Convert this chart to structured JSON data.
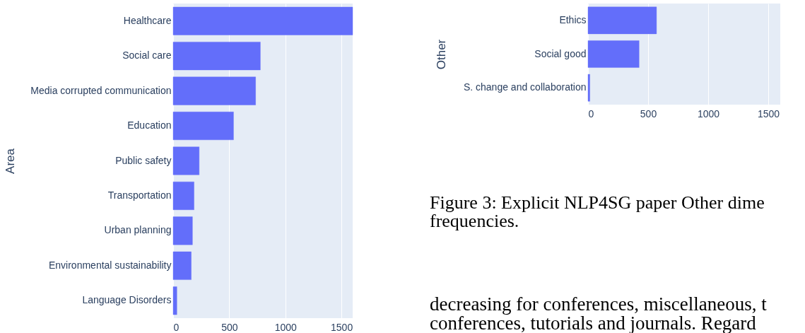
{
  "chart_data": [
    {
      "type": "bar",
      "orientation": "horizontal",
      "ylabel": "Area",
      "categories": [
        "Healthcare",
        "Social care",
        "Media corrupted communication",
        "Education",
        "Public safety",
        "Transportation",
        "Urban planning",
        "Environmental sustainability",
        "Language Disorders"
      ],
      "values": [
        1600,
        777,
        735,
        538,
        232,
        186,
        172,
        161,
        33
      ],
      "color": "#636efa",
      "xlim": [
        0,
        1600
      ],
      "xticks": [
        0,
        500,
        1000,
        1500
      ],
      "grid": "x"
    },
    {
      "type": "bar",
      "orientation": "horizontal",
      "ylabel": "Other",
      "categories": [
        "Ethics",
        "Social good",
        "S. change and collaboration"
      ],
      "values": [
        570,
        425,
        15
      ],
      "color": "#636efa",
      "xlim": [
        0,
        1600
      ],
      "xticks": [
        0,
        500,
        1000,
        1500
      ],
      "grid": "x",
      "annotations": [
        "Figure 3:  Explicit NLP4SG paper Other dime",
        "frequencies.",
        "decreasing for conferences, miscellaneous, t",
        "conferences, tutorials and journals. Regard"
      ]
    }
  ]
}
